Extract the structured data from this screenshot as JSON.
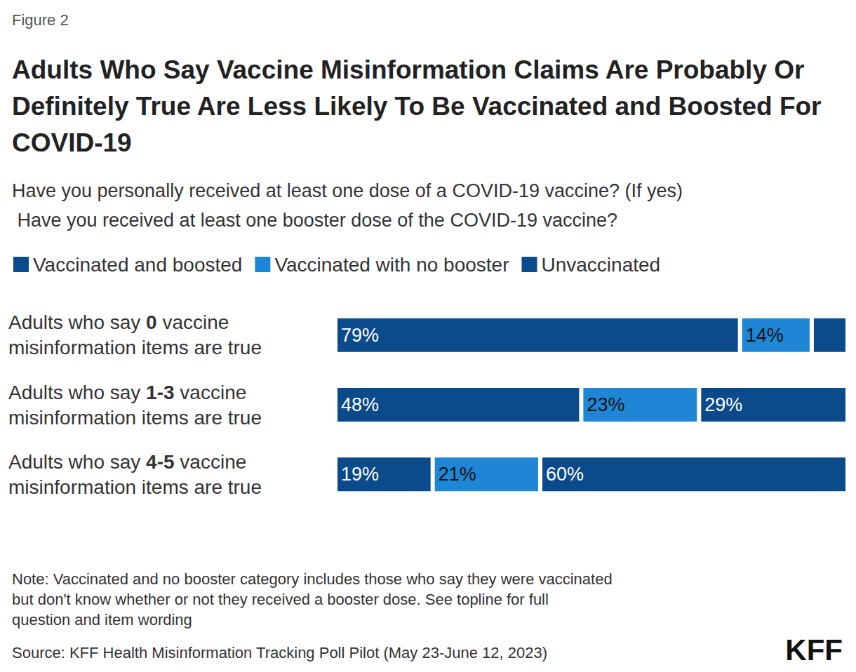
{
  "chart_data": {
    "type": "bar",
    "figure_label": "Figure 2",
    "title": "Adults Who Say Vaccine Misinformation Claims Are Probably Or Definitely True Are Less Likely To Be Vaccinated and Boosted For COVID-19",
    "subtitle": "Have you personally received at least one dose of a COVID-19 vaccine? (If yes) Have you received at least one booster dose of the COVID-19 vaccine?",
    "categories": [
      "Adults who say 0 vaccine misinformation items are true",
      "Adults who say 1-3 vaccine misinformation items are true",
      "Adults who say 4-5 vaccine misinformation items are true"
    ],
    "series": [
      {
        "name": "Vaccinated and boosted",
        "color": "#0b4a8b",
        "values": [
          79,
          48,
          19
        ],
        "value_labels": [
          "79%",
          "48%",
          "19%"
        ]
      },
      {
        "name": "Vaccinated with no booster",
        "color": "#1f86d6",
        "values": [
          14,
          23,
          21
        ],
        "value_labels": [
          "14%",
          "23%",
          "21%"
        ]
      },
      {
        "name": "Unvaccinated",
        "color": "#0b4a8b",
        "values": [
          7,
          29,
          60
        ],
        "value_labels": [
          null,
          "29%",
          "60%"
        ]
      }
    ],
    "orientation": "horizontal",
    "stacked": true,
    "data_labels": true,
    "legend": "top-left",
    "tick_labels": "y",
    "grid": false,
    "xlim": [
      0,
      100
    ],
    "note": "Note: Vaccinated and no booster category includes those who say they were vaccinated but don't know whether or not they received a booster dose. See topline for full question and item wording",
    "source": "Source: KFF Health Misinformation Tracking Poll Pilot (May 23-June 12, 2023)",
    "logo": "KFF"
  }
}
